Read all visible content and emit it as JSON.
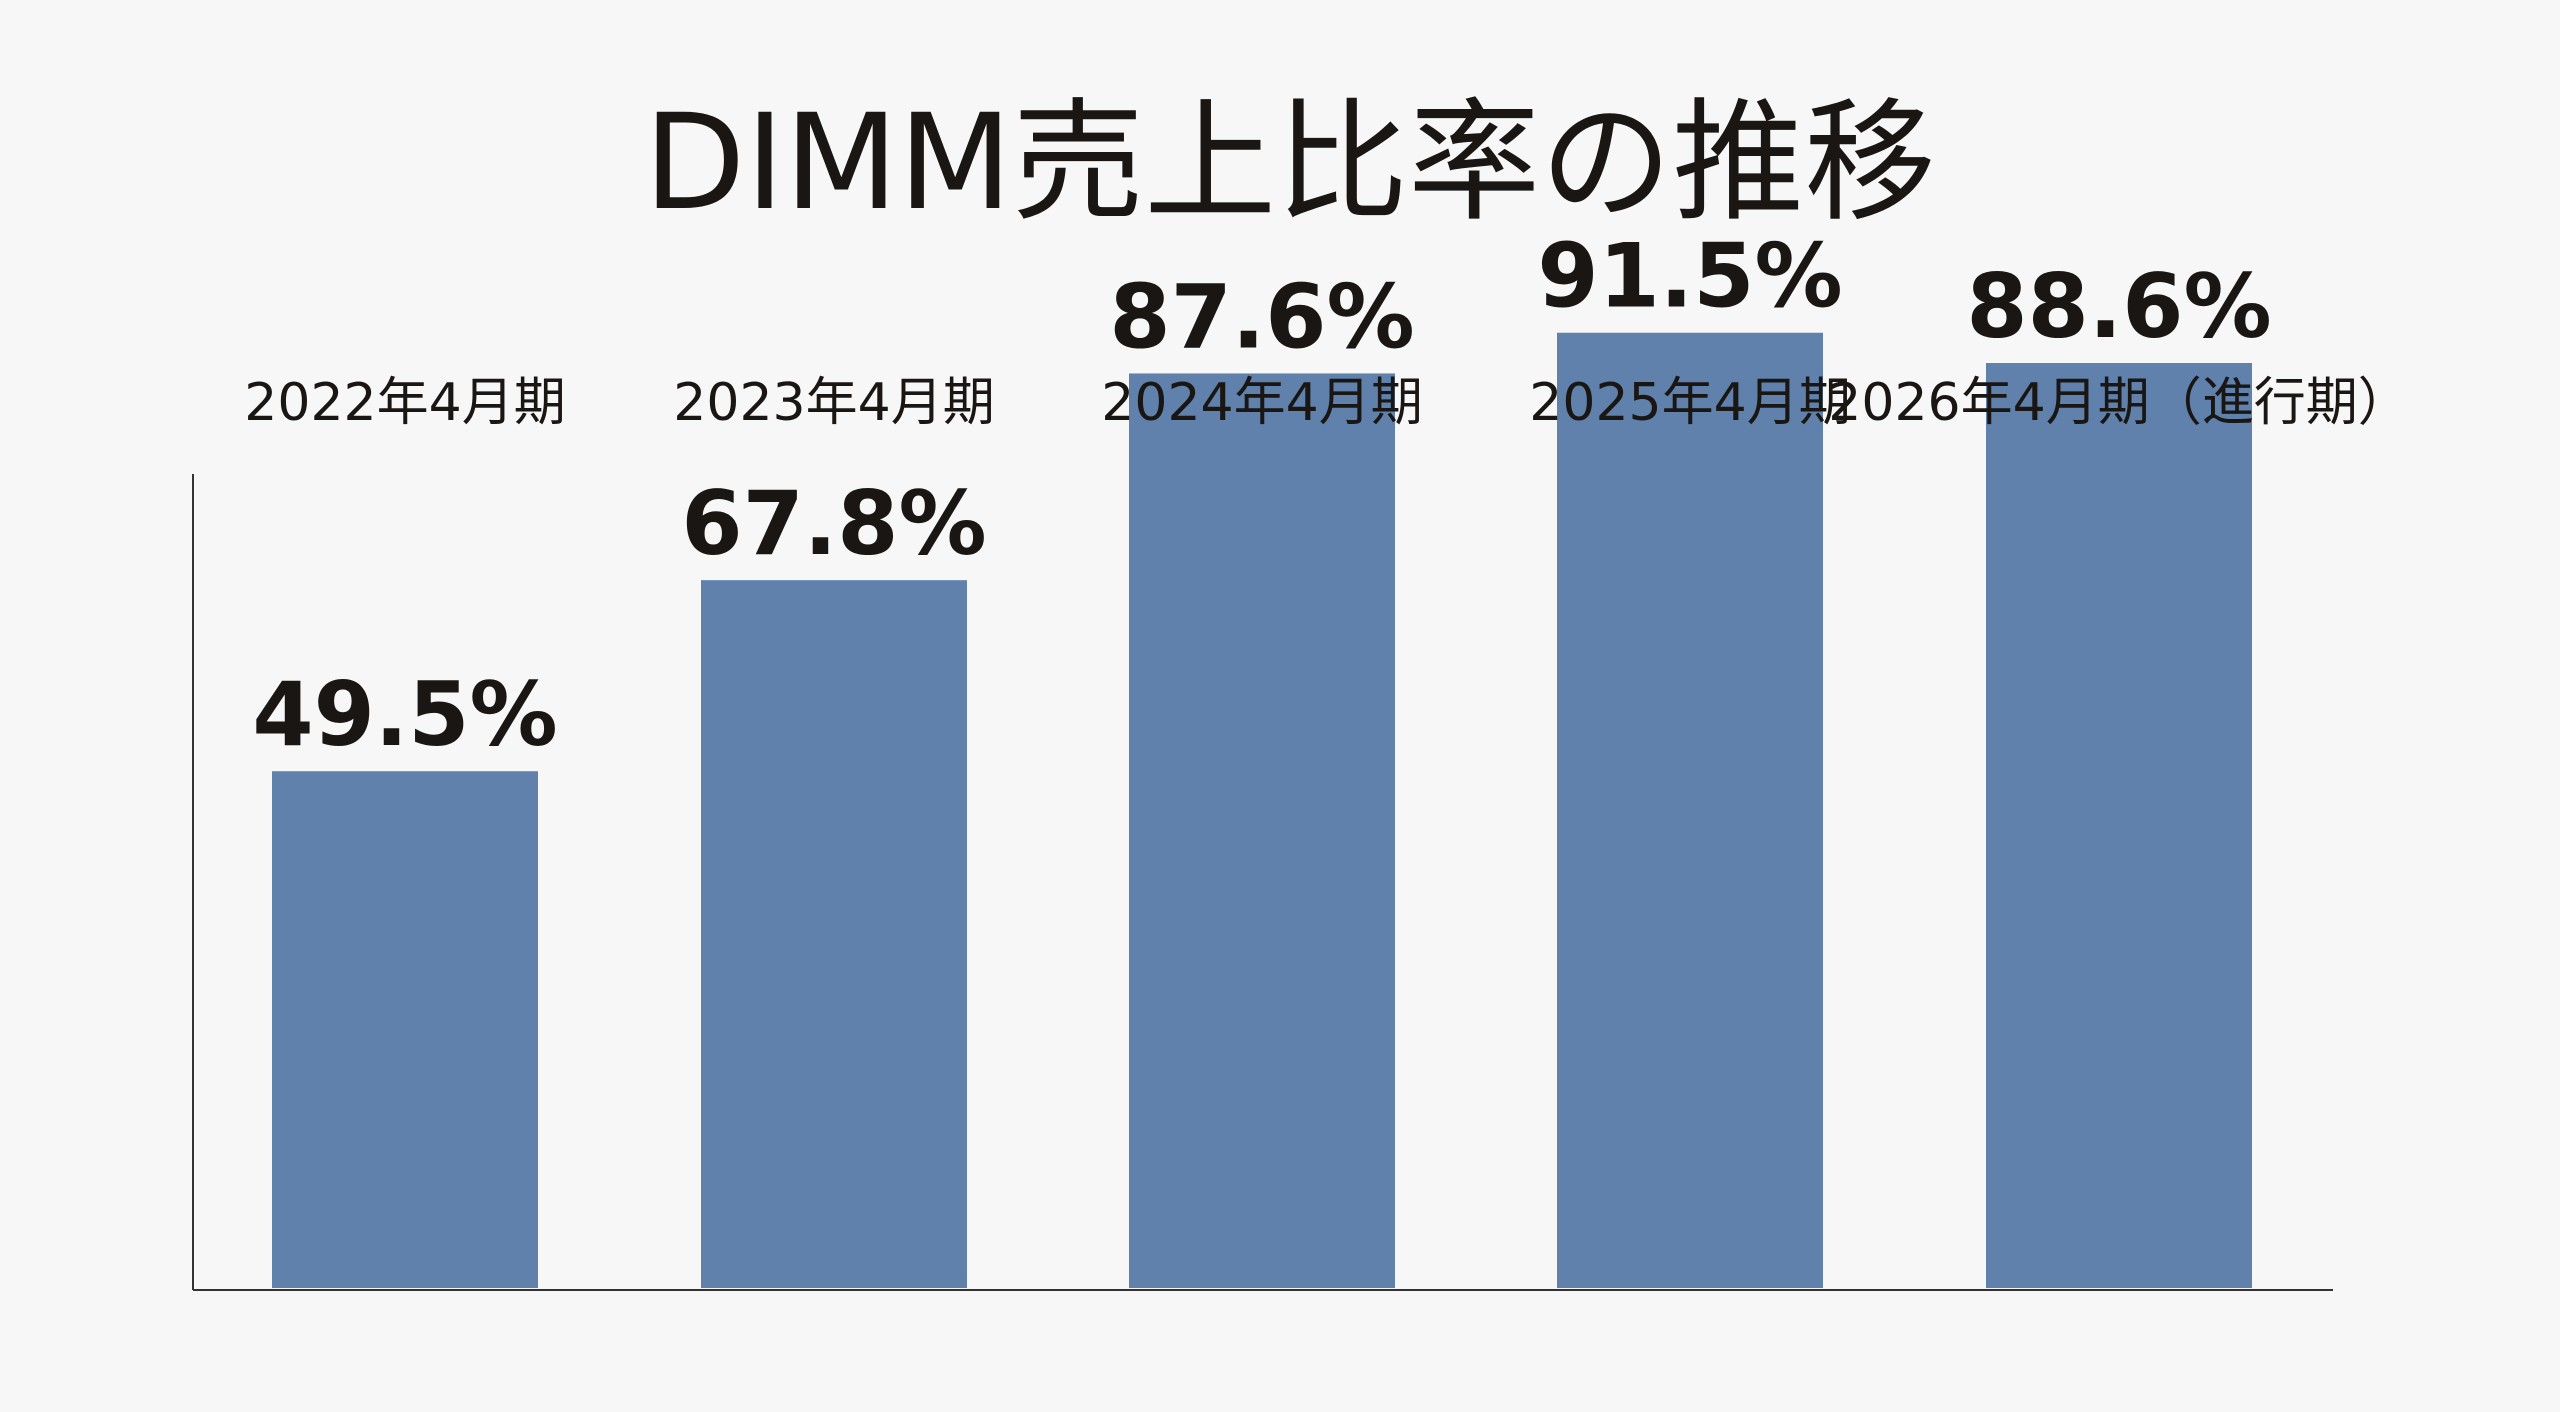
{
  "chart_data": {
    "type": "bar",
    "title": "DIMM売上比率の推移",
    "xlabel": "",
    "ylabel": "",
    "categories": [
      "2022年4月期",
      "2023年4月期",
      "2024年4月期",
      "2025年4月期",
      "2026年4月期（進行期）"
    ],
    "values": [
      49.5,
      67.8,
      87.6,
      91.5,
      88.6
    ],
    "value_labels": [
      "49.5%",
      "67.8%",
      "87.6%",
      "91.5%",
      "88.6%"
    ],
    "ylim": [
      0,
      100
    ],
    "grid": false,
    "legend": "none",
    "bar_color": "#5f81ab",
    "text_color": "#1a1614",
    "axis_color": "#333333",
    "background": "#f7f7f7"
  }
}
